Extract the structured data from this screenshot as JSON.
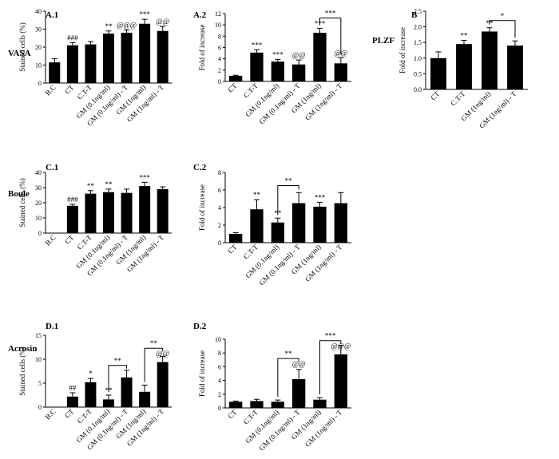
{
  "chart_data": [
    {
      "id": "A.1",
      "type": "bar",
      "panel_label": "A.1",
      "gene_label": "VASA",
      "ylabel": "Stained cells (%)",
      "ylim": [
        0,
        40
      ],
      "yticks": [
        0,
        10,
        20,
        30,
        40
      ],
      "categories": [
        "B.C",
        "CT",
        "C.T-T",
        "GM (0.1ng/ml)",
        "GM (0.1ng/ml) - T",
        "GM (1ng/ml)",
        "GM (1ng/ml) - T"
      ],
      "values": [
        11.5,
        21,
        21.5,
        27.5,
        28,
        33,
        29
      ],
      "errors": [
        2,
        1.5,
        1.5,
        1.5,
        1.5,
        2.5,
        2.5
      ],
      "annotations": [
        "",
        "###",
        "",
        "**",
        "@@@",
        "***",
        "@@"
      ],
      "brackets": []
    },
    {
      "id": "A.2",
      "type": "bar",
      "panel_label": "A.2",
      "gene_label": "",
      "ylabel": "Fold of increase",
      "ylim": [
        0,
        12
      ],
      "yticks": [
        0,
        2,
        4,
        6,
        8,
        10,
        12
      ],
      "categories": [
        "CT",
        "C.T-T",
        "GM (0.1ng/ml)",
        "GM (0.1ng/ml) - T",
        "GM (1ng/ml)",
        "GM (1ng/ml) - T"
      ],
      "values": [
        1,
        5.1,
        3.5,
        3,
        8.6,
        3.2
      ],
      "errors": [
        0.1,
        0.5,
        0.4,
        0.8,
        0.8,
        1
      ],
      "annotations": [
        "",
        "***",
        "***",
        "@@",
        "***",
        "@@"
      ],
      "brackets": [
        {
          "from": 4,
          "to": 5,
          "y": 11.2,
          "label": "***"
        }
      ]
    },
    {
      "id": "B",
      "type": "bar",
      "panel_label": "B",
      "gene_label": "PLZF",
      "ylabel": "Fold of increase",
      "ylim": [
        0,
        2.5
      ],
      "yticks": [
        0.0,
        0.5,
        1.0,
        1.5,
        2.0,
        2.5
      ],
      "categories": [
        "CT",
        "C.T-T",
        "GM (1ng/ml)",
        "GM (1ng/ml) - T"
      ],
      "values": [
        1,
        1.45,
        1.85,
        1.4
      ],
      "errors": [
        0.2,
        0.12,
        0.12,
        0.15
      ],
      "annotations": [
        "",
        "**",
        "**",
        ""
      ],
      "brackets": [
        {
          "from": 2,
          "to": 3,
          "y": 2.2,
          "label": "*"
        }
      ]
    },
    {
      "id": "C.1",
      "type": "bar",
      "panel_label": "C.1",
      "gene_label": "Boule",
      "ylabel": "Stained cells (%)",
      "ylim": [
        0,
        40
      ],
      "yticks": [
        0,
        10,
        20,
        30,
        40
      ],
      "categories": [
        "B.C",
        "CT",
        "C.T-T",
        "GM (0.1ng/ml)",
        "GM (0.1ng/ml) - T",
        "GM (1ng/ml)",
        "GM (1ng/ml) - T"
      ],
      "values": [
        0,
        18,
        26,
        27,
        26.5,
        31,
        29
      ],
      "errors": [
        0,
        1,
        2,
        2,
        2.5,
        2.5,
        1.5
      ],
      "annotations": [
        "",
        "###",
        "**",
        "**",
        "",
        "***",
        ""
      ],
      "brackets": []
    },
    {
      "id": "C.2",
      "type": "bar",
      "panel_label": "C.2",
      "gene_label": "",
      "ylabel": "Fold of increase",
      "ylim": [
        0,
        8
      ],
      "yticks": [
        0,
        2,
        4,
        6,
        8
      ],
      "categories": [
        "CT",
        "C.T-T",
        "GM (0.1ng/ml)",
        "GM (0.1ng/ml) - T",
        "GM (1ng/ml)",
        "GM (1ng/ml) - T"
      ],
      "values": [
        1,
        3.8,
        2.3,
        4.5,
        4.1,
        4.5
      ],
      "errors": [
        0.15,
        1.1,
        0.5,
        1.2,
        0.5,
        1.2
      ],
      "annotations": [
        "",
        "**",
        "**",
        "",
        "***",
        ""
      ],
      "brackets": [
        {
          "from": 2,
          "to": 3,
          "y": 6.5,
          "label": "**"
        }
      ]
    },
    {
      "id": "D.1",
      "type": "bar",
      "panel_label": "D.1",
      "gene_label": "Acrosin",
      "ylabel": "Stained cells (%)",
      "ylim": [
        0,
        15
      ],
      "yticks": [
        0,
        5,
        10,
        15
      ],
      "categories": [
        "B.C",
        "CT",
        "C.T-T",
        "GM (0.1ng/ml)",
        "GM (0.1ng/ml) - T",
        "GM (1ng/ml)",
        "GM (1ng/ml) - T"
      ],
      "values": [
        0,
        2.2,
        5.2,
        1.6,
        6.2,
        3.2,
        9.4
      ],
      "errors": [
        0,
        0.8,
        0.8,
        0.9,
        1.5,
        1.4,
        1.2
      ],
      "annotations": [
        "",
        "##",
        "*",
        "**",
        "",
        "",
        ""
      ],
      "brackets": [
        {
          "from": 3,
          "to": 4,
          "y": 8.7,
          "label": "**"
        },
        {
          "from": 5,
          "to": 6,
          "y": 12.3,
          "label": "**",
          "sublabel": "@@"
        }
      ]
    },
    {
      "id": "D.2",
      "type": "bar",
      "panel_label": "D.2",
      "gene_label": "",
      "ylabel": "Fold of increase",
      "ylim": [
        0,
        10
      ],
      "yticks": [
        0,
        2,
        4,
        6,
        8,
        10
      ],
      "categories": [
        "CT",
        "C.T-T",
        "GM (0.1ng/ml)",
        "GM (0.1ng/ml) - T",
        "GM (1ng/ml)",
        "GM (1ng/ml) - T"
      ],
      "values": [
        0.9,
        1,
        0.9,
        4.2,
        1.2,
        7.8
      ],
      "errors": [
        0.1,
        0.25,
        0.25,
        1.4,
        0.3,
        1.3
      ],
      "annotations": [
        "",
        "",
        "",
        "",
        "",
        ""
      ],
      "brackets": [
        {
          "from": 2,
          "to": 3,
          "y": 7.2,
          "label": "**",
          "sublabel": "@@"
        },
        {
          "from": 4,
          "to": 5,
          "y": 9.8,
          "label": "***",
          "sublabel": "@@@"
        }
      ]
    }
  ]
}
